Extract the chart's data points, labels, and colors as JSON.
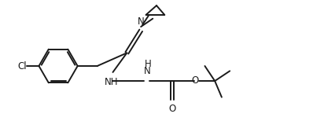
{
  "bg_color": "#ffffff",
  "line_color": "#1a1a1a",
  "line_width": 1.4,
  "font_size": 8.5,
  "figsize": [
    3.98,
    1.68
  ],
  "dpi": 100,
  "xlim": [
    0,
    10
  ],
  "ylim": [
    0,
    4.2
  ]
}
